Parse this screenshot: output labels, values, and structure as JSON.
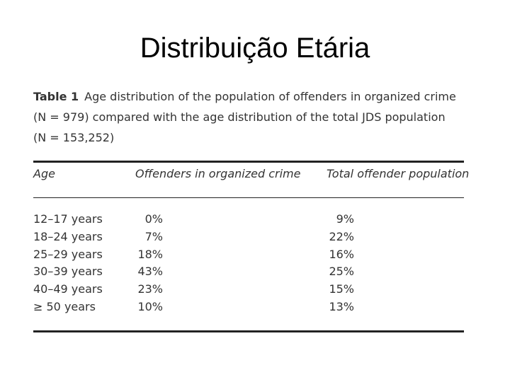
{
  "slide": {
    "title": "Distribuição Etária"
  },
  "table": {
    "caption_label": "Table 1",
    "caption_lines": [
      "Age distribution of the population of offenders in organized crime",
      "(N = 979) compared with the age distribution of the total JDS population",
      "(N = 153,252)"
    ],
    "headers": [
      "Age",
      "Offenders in organized crime",
      "Total offender population"
    ],
    "rows": [
      [
        "12–17 years",
        "0%",
        "9%"
      ],
      [
        "18–24 years",
        "7%",
        "22%"
      ],
      [
        "25–29 years",
        "18%",
        "16%"
      ],
      [
        "30–39 years",
        "43%",
        "25%"
      ],
      [
        "40–49 years",
        "23%",
        "15%"
      ],
      [
        "≥ 50 years",
        "10%",
        "13%"
      ]
    ]
  }
}
